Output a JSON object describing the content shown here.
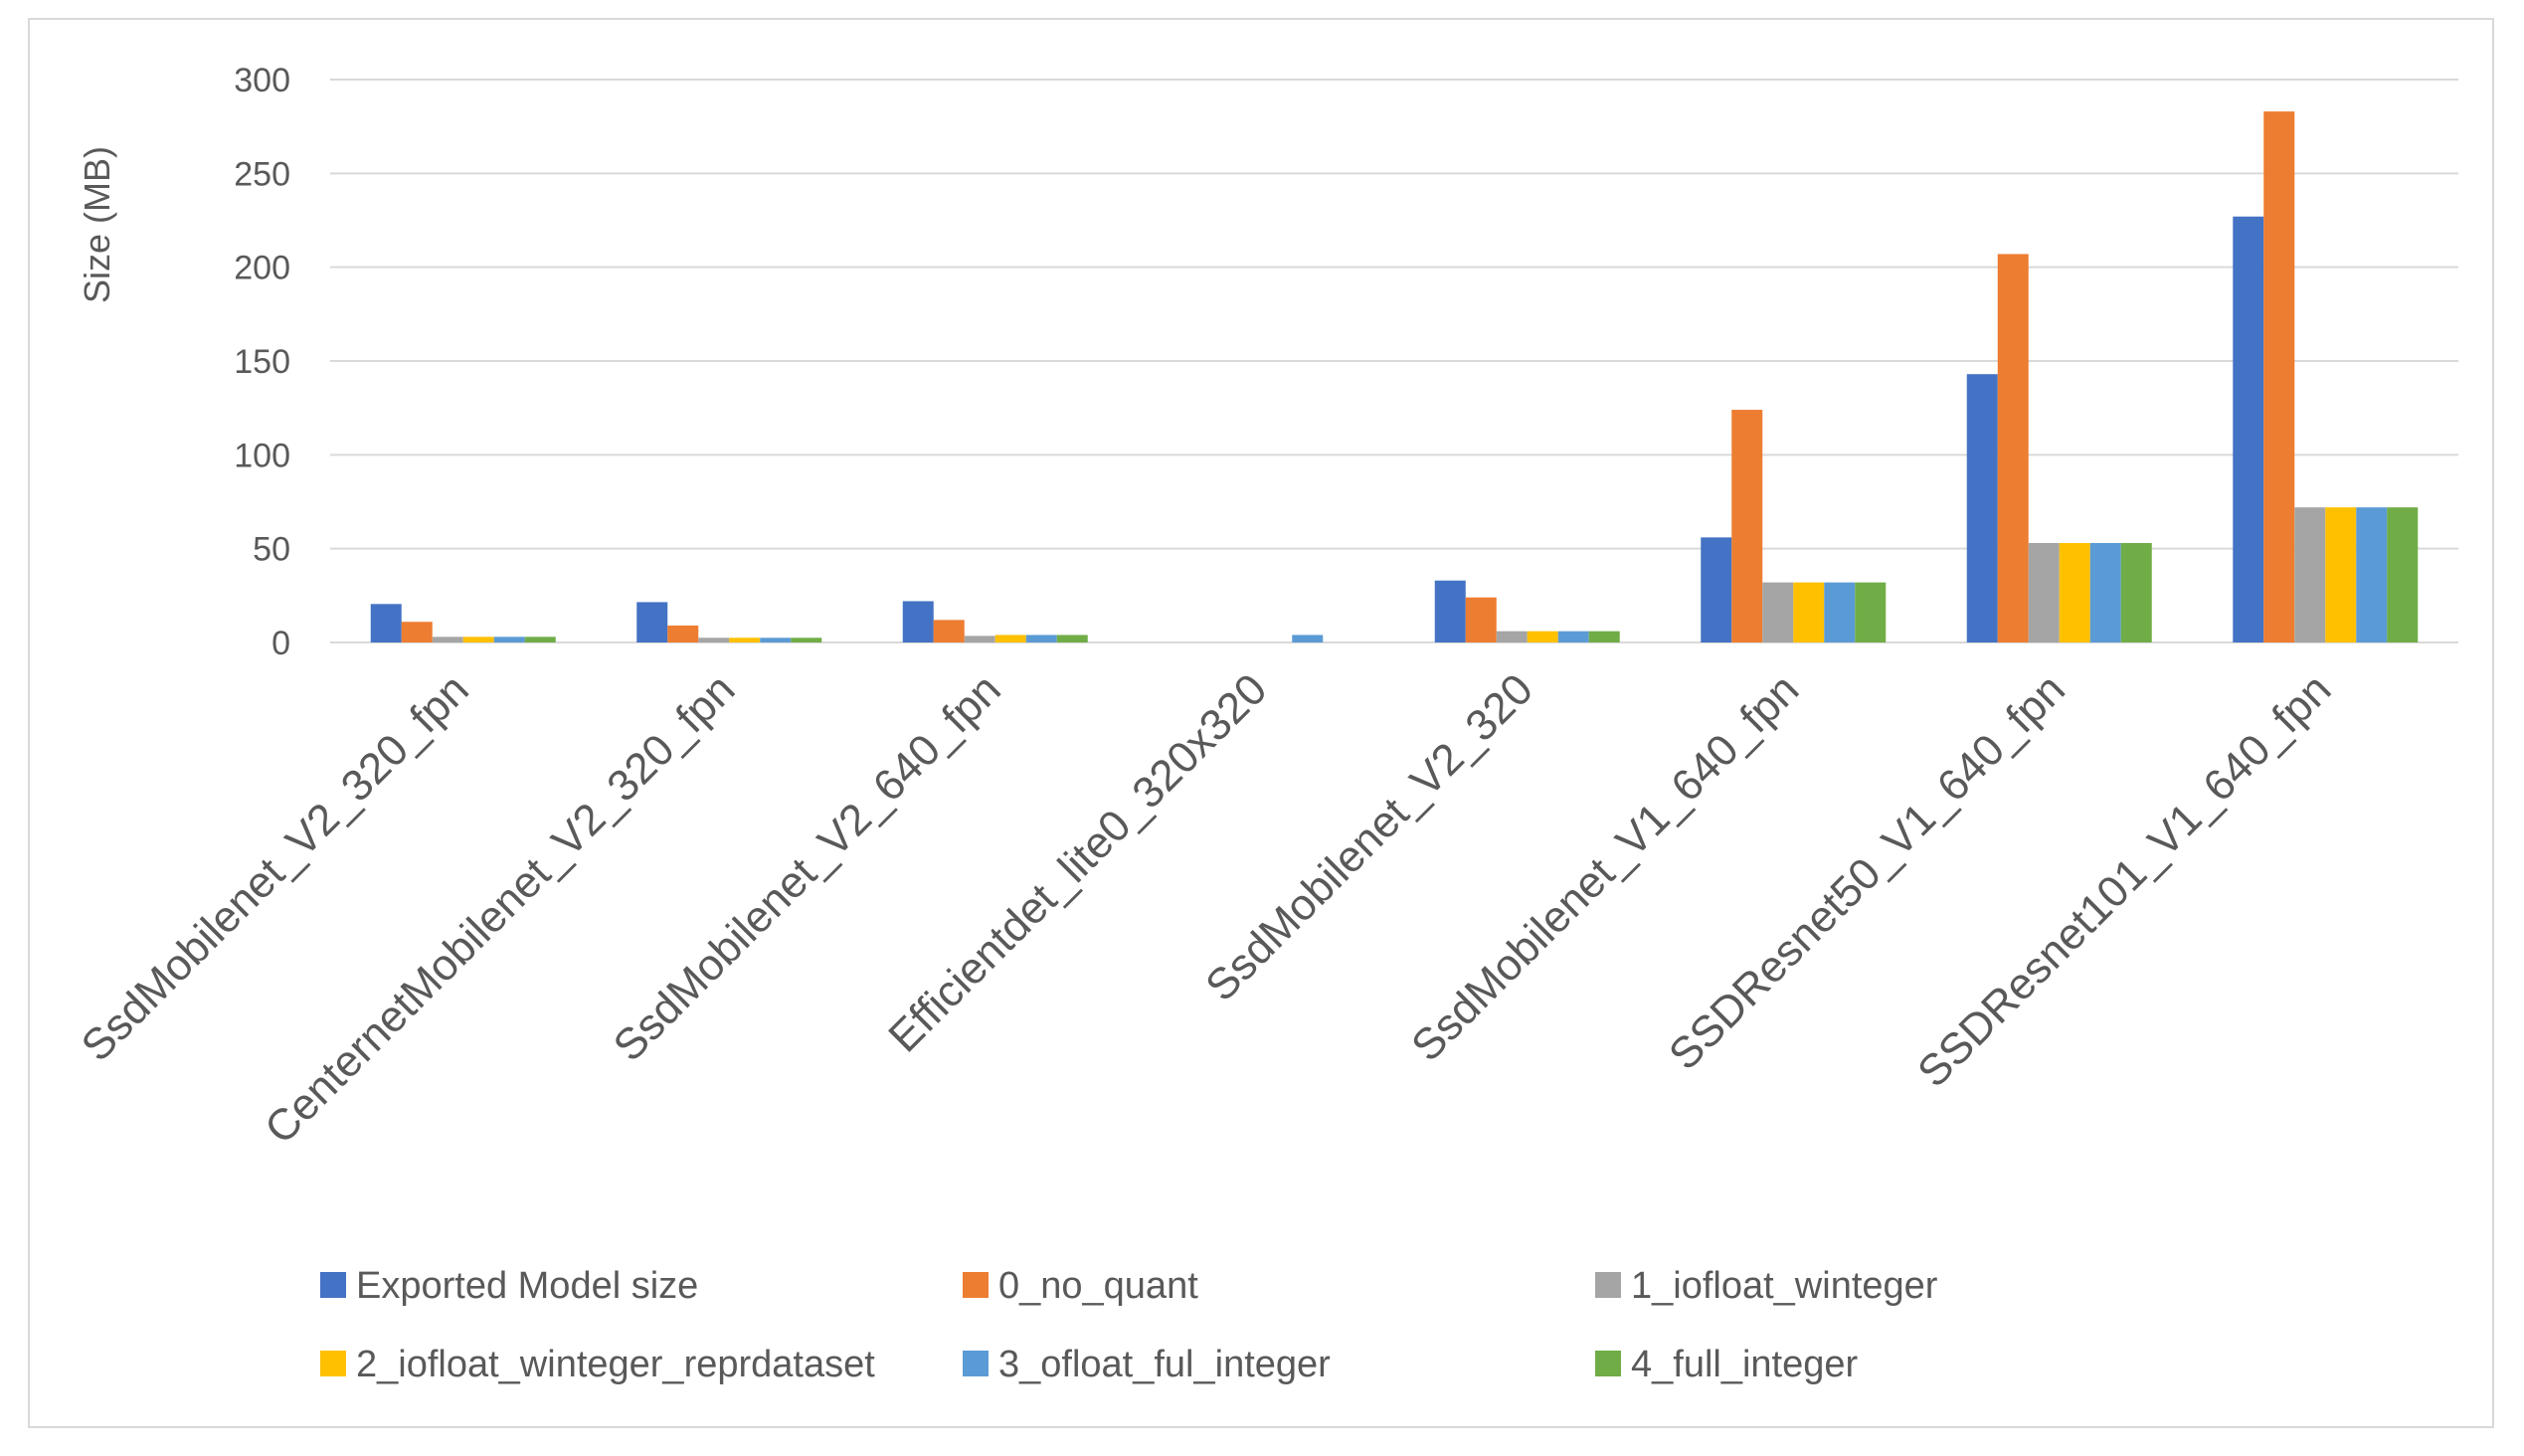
{
  "chart_data": {
    "type": "bar",
    "title": "",
    "xlabel": "",
    "ylabel": "Size (MB)",
    "ylim": [
      0,
      300
    ],
    "yticks": [
      0,
      50,
      100,
      150,
      200,
      250,
      300
    ],
    "grid": true,
    "legend_position": "bottom",
    "categories": [
      "SsdMobilenet_V2_320_fpn",
      "CenternetMobilenet_V2_320_fpn",
      "SsdMobilenet_V2_640_fpn",
      "Efficientdet_lite0_320x320",
      "SsdMobilenet_V2_320",
      "SsdMobilenet_V1_640_fpn",
      "SSDResnet50_V1_640_fpn",
      "SSDResnet101_V1_640_fpn"
    ],
    "series": [
      {
        "name": "Exported Model size",
        "color": "#4472C4",
        "values": [
          20.5,
          21.5,
          22,
          0,
          33,
          56,
          143,
          227
        ]
      },
      {
        "name": "0_no_quant",
        "color": "#ED7D31",
        "values": [
          11,
          9,
          12,
          0,
          24,
          124,
          207,
          283
        ]
      },
      {
        "name": "1_iofloat_winteger",
        "color": "#A5A5A5",
        "values": [
          3,
          2.5,
          3.5,
          0,
          6,
          32,
          53,
          72
        ]
      },
      {
        "name": "2_iofloat_winteger_reprdataset",
        "color": "#FFC000",
        "values": [
          3,
          2.5,
          4,
          0,
          6,
          32,
          53,
          72
        ]
      },
      {
        "name": "3_ofloat_ful_integer",
        "color": "#5B9BD5",
        "values": [
          3,
          2.5,
          4,
          4,
          6,
          32,
          53,
          72
        ]
      },
      {
        "name": "4_full_integer",
        "color": "#70AD47",
        "values": [
          3,
          2.5,
          4,
          0,
          6,
          32,
          53,
          72
        ]
      }
    ]
  }
}
